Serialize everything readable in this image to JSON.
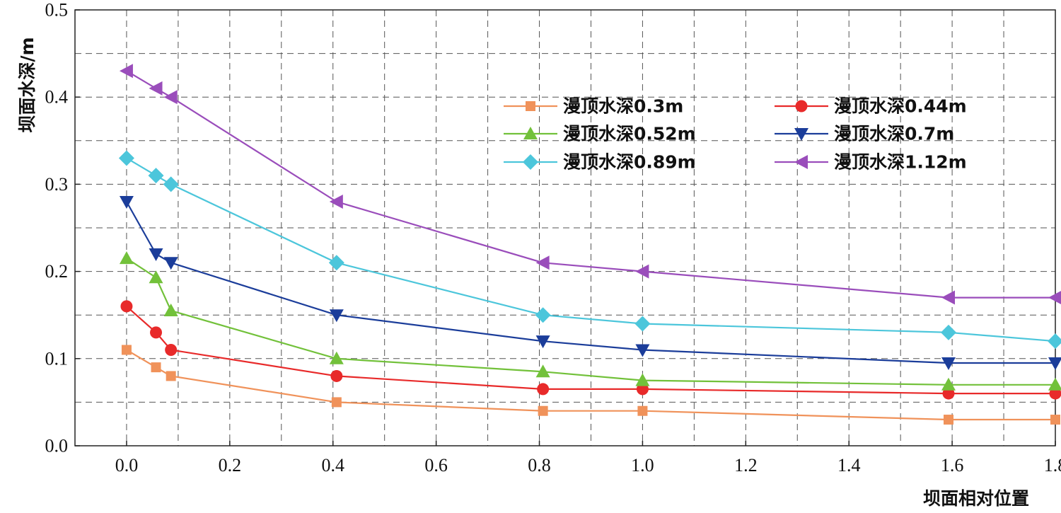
{
  "chart_data": {
    "type": "line",
    "title": "",
    "xlabel": "坝面相对位置",
    "ylabel": "坝面水深/m",
    "xlim": [
      -0.1,
      1.8
    ],
    "ylim": [
      0.0,
      0.5
    ],
    "x_ticks": [
      "0.0",
      "0.2",
      "0.4",
      "0.6",
      "0.8",
      "1.0",
      "1.2",
      "1.4",
      "1.6",
      "1.8"
    ],
    "y_ticks": [
      "0.0",
      "0.1",
      "0.2",
      "0.3",
      "0.4",
      "0.5"
    ],
    "grid": true,
    "legend_position": "top-right",
    "series": [
      {
        "name": "漫顶水深0.3m",
        "color": "#f0925a",
        "marker": "square",
        "x": [
          0.0,
          0.057,
          0.086,
          0.407,
          0.807,
          1.0,
          1.593,
          1.8
        ],
        "y": [
          0.11,
          0.09,
          0.08,
          0.05,
          0.04,
          0.04,
          0.03,
          0.03
        ]
      },
      {
        "name": "漫顶水深0.44m",
        "color": "#e82a2a",
        "marker": "circle",
        "x": [
          0.0,
          0.057,
          0.086,
          0.407,
          0.807,
          1.0,
          1.593,
          1.8
        ],
        "y": [
          0.16,
          0.13,
          0.11,
          0.08,
          0.065,
          0.065,
          0.06,
          0.06
        ]
      },
      {
        "name": "漫顶水深0.52m",
        "color": "#72c13a",
        "marker": "triangle-up",
        "x": [
          0.0,
          0.057,
          0.086,
          0.407,
          0.807,
          1.0,
          1.593,
          1.8
        ],
        "y": [
          0.215,
          0.193,
          0.155,
          0.1,
          0.085,
          0.075,
          0.07,
          0.07
        ]
      },
      {
        "name": "漫顶水深0.7m",
        "color": "#1b3d9a",
        "marker": "triangle-down",
        "x": [
          0.0,
          0.057,
          0.086,
          0.407,
          0.807,
          1.0,
          1.593,
          1.8
        ],
        "y": [
          0.28,
          0.22,
          0.21,
          0.15,
          0.12,
          0.11,
          0.095,
          0.095
        ]
      },
      {
        "name": "漫顶水深0.89m",
        "color": "#4cc6db",
        "marker": "diamond",
        "x": [
          0.0,
          0.057,
          0.086,
          0.407,
          0.807,
          1.0,
          1.593,
          1.8
        ],
        "y": [
          0.33,
          0.31,
          0.3,
          0.21,
          0.15,
          0.14,
          0.13,
          0.12
        ]
      },
      {
        "name": "漫顶水深1.12m",
        "color": "#9a4dbb",
        "marker": "triangle-left",
        "x": [
          0.0,
          0.057,
          0.086,
          0.407,
          0.807,
          1.0,
          1.593,
          1.8
        ],
        "y": [
          0.43,
          0.41,
          0.4,
          0.28,
          0.21,
          0.2,
          0.17,
          0.17
        ]
      }
    ]
  }
}
